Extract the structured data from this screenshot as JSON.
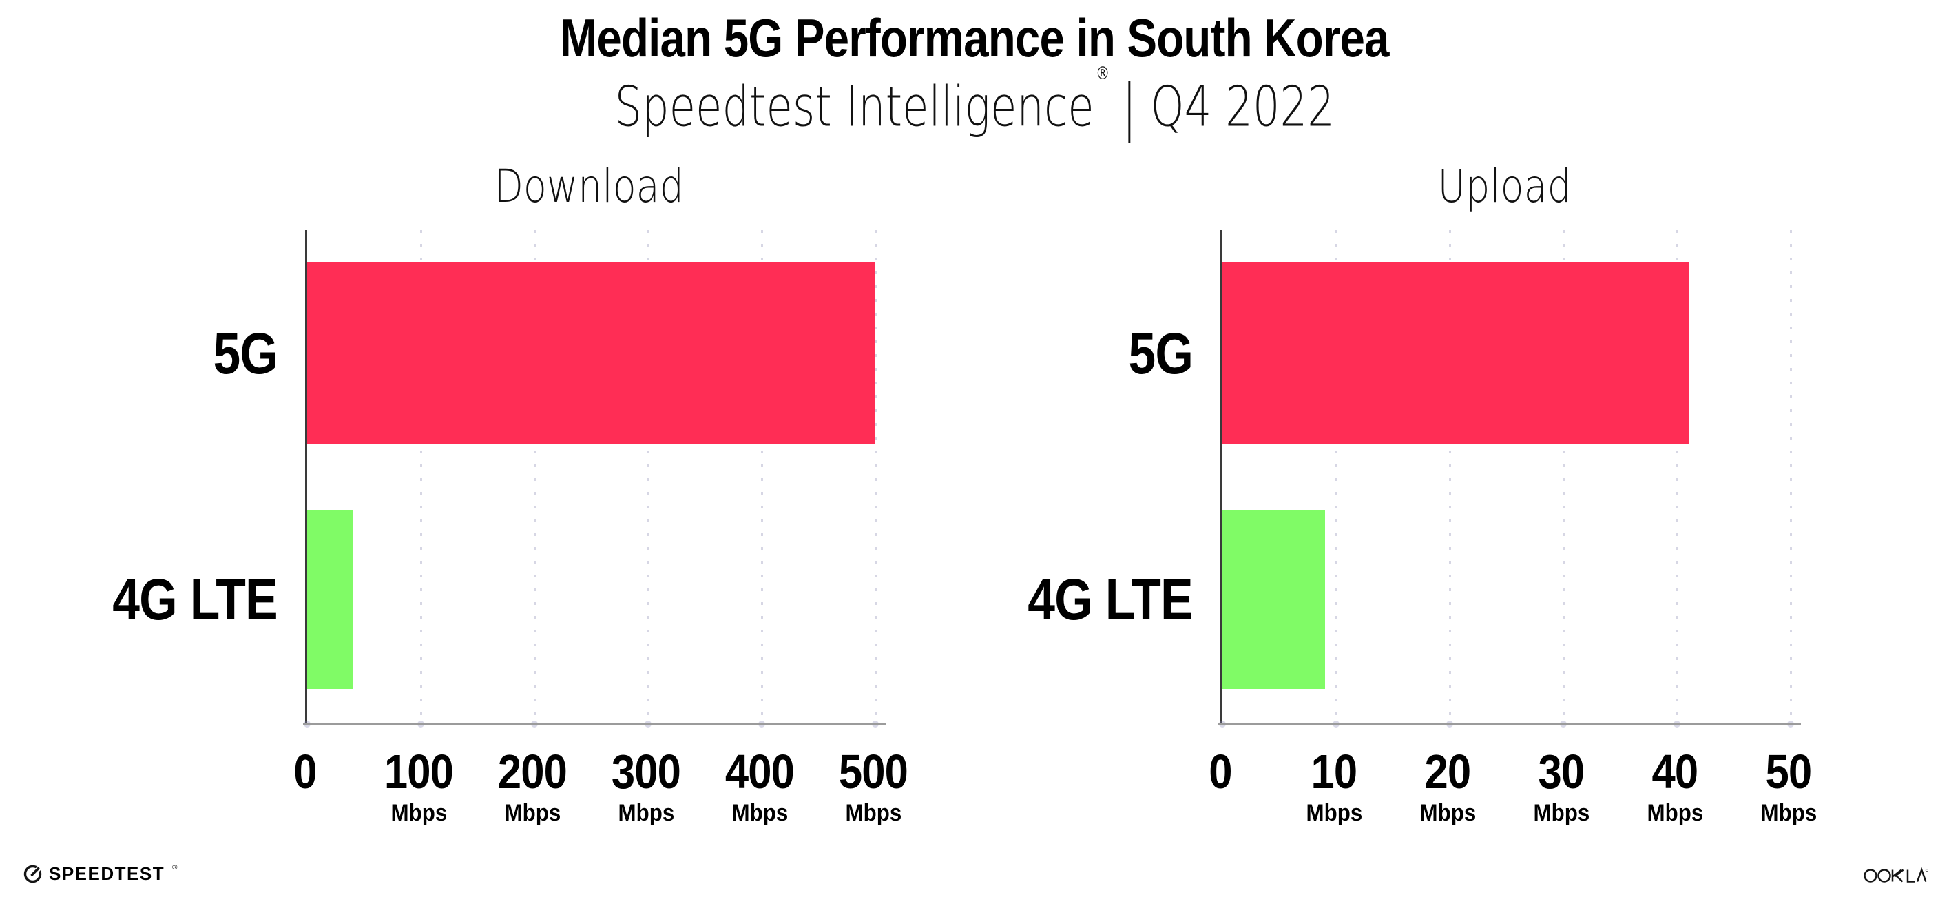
{
  "header": {
    "title": "Median 5G Performance in South Korea",
    "subtitle": {
      "brand": "Speedtest Intelligence",
      "registered_mark": "®",
      "separator": "|",
      "period": "Q4 2022"
    }
  },
  "colors": {
    "bar_5g": "#FF2D55",
    "bar_4g_lte": "#80FB66",
    "axis_left": "#3a3a3a",
    "axis_bottom": "#9b9b9b",
    "gridline_dots": "#8a8ab4",
    "text": "#000000",
    "background": "#ffffff"
  },
  "chart_data": [
    {
      "type": "bar",
      "orientation": "horizontal",
      "title": "Download",
      "categories": [
        "5G",
        "4G LTE"
      ],
      "values": [
        500,
        40
      ],
      "value_unit": "Mbps",
      "series_colors": [
        "#FF2D55",
        "#80FB66"
      ],
      "xlim": [
        0,
        500
      ],
      "xticks": [
        0,
        100,
        200,
        300,
        400,
        500
      ],
      "xtick_unit_label": "Mbps",
      "xtick_unit_on_zero": false,
      "grid": "vertical-dotted",
      "legend": "none"
    },
    {
      "type": "bar",
      "orientation": "horizontal",
      "title": "Upload",
      "categories": [
        "5G",
        "4G LTE"
      ],
      "values": [
        41,
        9
      ],
      "value_unit": "Mbps",
      "series_colors": [
        "#FF2D55",
        "#80FB66"
      ],
      "xlim": [
        0,
        50
      ],
      "xticks": [
        0,
        10,
        20,
        30,
        40,
        50
      ],
      "xtick_unit_label": "Mbps",
      "xtick_unit_on_zero": false,
      "grid": "vertical-dotted",
      "legend": "none"
    }
  ],
  "footer": {
    "speedtest": {
      "label": "SPEEDTEST",
      "mark": "®"
    },
    "ookla": {
      "label": "OOKLA",
      "mark": "®"
    }
  }
}
